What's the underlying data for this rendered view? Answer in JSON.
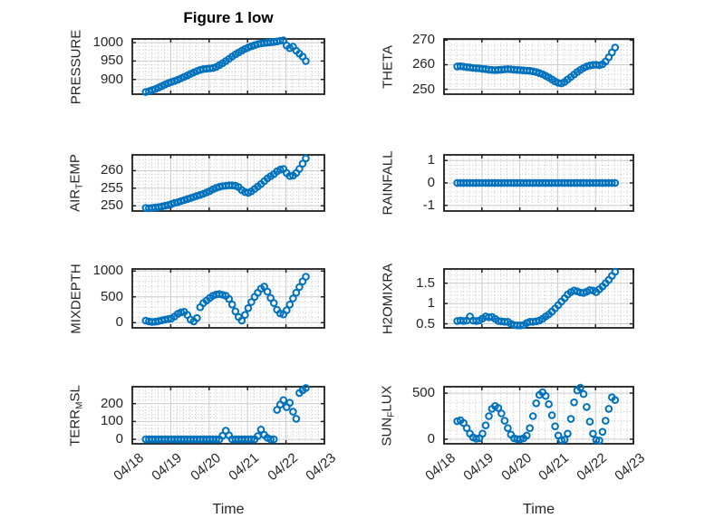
{
  "figure": {
    "title": "Figure 1 low",
    "xlabel": "Time"
  },
  "style": {
    "marker_color": "#0072BD",
    "axis_color": "#1f1f1f",
    "grid_major_color": "#cccccc",
    "grid_minor_color": "#c4c4c4",
    "tick_label_color": "#262626"
  },
  "time_axis": {
    "xtick_labels": [
      "04/18",
      "04/19",
      "04/20",
      "04/21",
      "04/22",
      "04/23"
    ],
    "xlim_days": [
      0,
      5
    ],
    "xminor_step_day": 0.16667,
    "start_day": 0.35,
    "step_day": 0.083333,
    "n_points": 51
  },
  "chart_data": [
    {
      "type": "scatter",
      "name": "PRESSURE",
      "row": 0,
      "col": 0,
      "ylabel_parts": [
        {
          "text": "PRESSURE",
          "sub": false
        }
      ],
      "yticks": [
        900,
        950,
        1000
      ],
      "ylim": [
        860,
        1010
      ],
      "yminor_step": 10,
      "values": [
        866,
        868,
        871,
        874,
        878,
        882,
        886,
        890,
        893,
        896,
        899,
        903,
        907,
        911,
        915,
        919,
        923,
        926,
        928,
        929,
        930,
        931,
        934,
        939,
        944,
        950,
        956,
        962,
        968,
        973,
        978,
        983,
        987,
        990,
        993,
        996,
        998,
        999,
        1000,
        1001,
        1002,
        1003,
        1005,
        1006,
        992,
        985,
        989,
        978,
        970,
        962,
        950
      ]
    },
    {
      "type": "scatter",
      "name": "THETA",
      "row": 0,
      "col": 1,
      "ylabel_parts": [
        {
          "text": "THETA",
          "sub": false
        }
      ],
      "yticks": [
        250,
        260,
        270
      ],
      "ylim": [
        248,
        270.5
      ],
      "yminor_step": 2,
      "values": [
        259.3,
        259.4,
        259.2,
        259.0,
        258.9,
        258.7,
        258.6,
        258.5,
        258.3,
        258.2,
        258.0,
        257.9,
        257.8,
        257.9,
        258.0,
        258.1,
        258.2,
        258.1,
        258.0,
        257.9,
        257.8,
        257.7,
        257.6,
        257.5,
        257.3,
        257.0,
        256.6,
        256.1,
        255.5,
        254.8,
        254.0,
        253.2,
        252.6,
        252.4,
        253.0,
        254.0,
        255.0,
        256.0,
        257.0,
        257.9,
        258.7,
        259.3,
        259.7,
        259.9,
        260.0,
        259.8,
        260.2,
        261.3,
        263.0,
        265.0,
        267.0
      ]
    },
    {
      "type": "scatter",
      "name": "AIR_TEMP",
      "row": 1,
      "col": 0,
      "ylabel_parts": [
        {
          "text": "AIR",
          "sub": false
        },
        {
          "text": "T",
          "sub": true
        },
        {
          "text": "EMP",
          "sub": false
        }
      ],
      "yticks": [
        250,
        255,
        260
      ],
      "ylim": [
        248.5,
        264.5
      ],
      "yminor_step": 1,
      "values": [
        249.4,
        249.3,
        249.4,
        249.5,
        249.6,
        249.8,
        250.0,
        250.2,
        250.5,
        250.8,
        251.0,
        251.3,
        251.6,
        251.9,
        252.2,
        252.5,
        252.8,
        253.1,
        253.4,
        253.8,
        254.2,
        254.7,
        255.1,
        255.4,
        255.6,
        255.7,
        255.8,
        255.8,
        255.7,
        255.3,
        254.5,
        253.9,
        253.7,
        254.1,
        254.8,
        255.5,
        256.2,
        257.0,
        257.8,
        258.4,
        259.0,
        259.8,
        260.3,
        260.5,
        259.3,
        258.5,
        258.6,
        259.3,
        260.5,
        262.0,
        263.5
      ]
    },
    {
      "type": "scatter",
      "name": "RAINFALL",
      "row": 1,
      "col": 1,
      "ylabel_parts": [
        {
          "text": "RAINFALL",
          "sub": false
        }
      ],
      "yticks": [
        -1,
        0,
        1
      ],
      "ylim": [
        -1.25,
        1.25
      ],
      "yminor_step": 0.2,
      "values": [
        0,
        0,
        0,
        0,
        0,
        0,
        0,
        0,
        0,
        0,
        0,
        0,
        0,
        0,
        0,
        0,
        0,
        0,
        0,
        0,
        0,
        0,
        0,
        0,
        0,
        0,
        0,
        0,
        0,
        0,
        0,
        0,
        0,
        0,
        0,
        0,
        0,
        0,
        0,
        0,
        0,
        0,
        0,
        0,
        0,
        0,
        0,
        0,
        0,
        0,
        0
      ]
    },
    {
      "type": "scatter",
      "name": "MIXDEPTH",
      "row": 2,
      "col": 0,
      "ylabel_parts": [
        {
          "text": "MIXDEPTH",
          "sub": false
        }
      ],
      "yticks": [
        0,
        500,
        1000
      ],
      "ylim": [
        -100,
        1040
      ],
      "yminor_step": 100,
      "values": [
        40,
        25,
        15,
        20,
        30,
        45,
        60,
        70,
        80,
        120,
        170,
        200,
        210,
        150,
        60,
        25,
        90,
        300,
        380,
        430,
        480,
        520,
        545,
        555,
        540,
        520,
        460,
        350,
        220,
        110,
        40,
        150,
        280,
        400,
        500,
        580,
        660,
        700,
        600,
        480,
        380,
        250,
        180,
        160,
        240,
        350,
        470,
        580,
        690,
        800,
        890
      ]
    },
    {
      "type": "scatter",
      "name": "H2OMIXRA",
      "row": 2,
      "col": 1,
      "ylabel_parts": [
        {
          "text": "H2OMIXRA",
          "sub": false
        }
      ],
      "yticks": [
        0.5,
        1,
        1.5
      ],
      "ylim": [
        0.4,
        1.85
      ],
      "yminor_step": 0.1,
      "values": [
        0.57,
        0.58,
        0.57,
        0.58,
        0.68,
        0.58,
        0.57,
        0.58,
        0.63,
        0.68,
        0.66,
        0.67,
        0.62,
        0.57,
        0.56,
        0.55,
        0.55,
        0.5,
        0.47,
        0.46,
        0.46,
        0.47,
        0.52,
        0.55,
        0.55,
        0.56,
        0.58,
        0.62,
        0.68,
        0.73,
        0.8,
        0.88,
        0.96,
        1.05,
        1.13,
        1.22,
        1.28,
        1.32,
        1.3,
        1.27,
        1.26,
        1.29,
        1.33,
        1.32,
        1.28,
        1.35,
        1.42,
        1.5,
        1.58,
        1.68,
        1.78
      ]
    },
    {
      "type": "scatter",
      "name": "TERR_MSL",
      "row": 3,
      "col": 0,
      "ylabel_parts": [
        {
          "text": "TERR",
          "sub": false
        },
        {
          "text": "M",
          "sub": true
        },
        {
          "text": "SL",
          "sub": false
        }
      ],
      "yticks": [
        0,
        100,
        200
      ],
      "ylim": [
        -25,
        295
      ],
      "yminor_step": 20,
      "values": [
        0,
        0,
        0,
        0,
        0,
        0,
        0,
        0,
        0,
        0,
        0,
        0,
        0,
        0,
        0,
        0,
        0,
        0,
        0,
        0,
        0,
        0,
        0,
        0,
        20,
        48,
        22,
        0,
        0,
        0,
        0,
        0,
        0,
        0,
        0,
        18,
        55,
        25,
        8,
        0,
        0,
        165,
        195,
        220,
        180,
        205,
        155,
        115,
        260,
        275,
        288
      ]
    },
    {
      "type": "scatter",
      "name": "SUN_FLUX",
      "row": 3,
      "col": 1,
      "ylabel_parts": [
        {
          "text": "SUN",
          "sub": false
        },
        {
          "text": "F",
          "sub": true
        },
        {
          "text": "LUX",
          "sub": false
        }
      ],
      "yticks": [
        0,
        500
      ],
      "ylim": [
        -50,
        570
      ],
      "yminor_step": 100,
      "values": [
        195,
        205,
        175,
        120,
        60,
        20,
        5,
        10,
        60,
        150,
        250,
        330,
        360,
        340,
        280,
        200,
        120,
        50,
        10,
        0,
        0,
        10,
        40,
        120,
        250,
        390,
        480,
        510,
        470,
        380,
        260,
        140,
        40,
        -10,
        -5,
        60,
        220,
        400,
        530,
        560,
        490,
        350,
        190,
        60,
        -10,
        -15,
        80,
        200,
        330,
        455,
        425
      ]
    }
  ]
}
